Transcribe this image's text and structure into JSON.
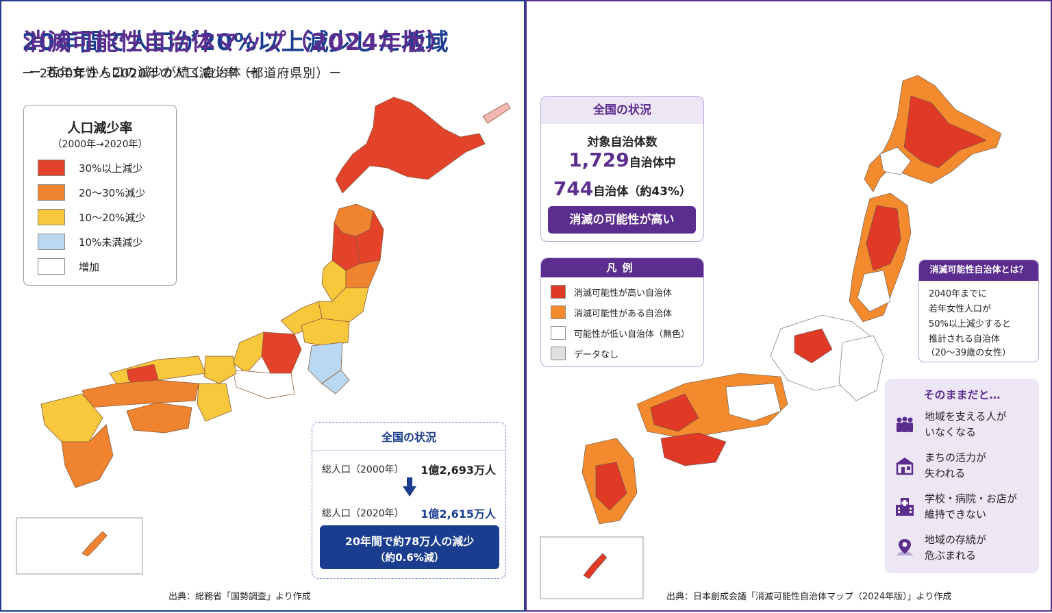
{
  "colors": {
    "left_accent": "#1a3d8f",
    "right_accent": "#5b2d8e",
    "decline_30_plus": "#e2432a",
    "decline_20_30": "#f0832f",
    "decline_10_20": "#f7c73c",
    "decline_under_10": "#b9d8f2",
    "increase": "#ffffff",
    "high_possibility": "#e03a26",
    "possible": "#f38a2e",
    "low_possibility": "#ffffff",
    "no_data": "#e0e0e0"
  },
  "left": {
    "title": "20年間で人口が20%以上減少した地域",
    "subtitle": "ー 2000年から2020年の人口減少率（都道府県別）ー",
    "legend": {
      "title": "人口減少率",
      "subtitle": "（2000年→2020年）",
      "items": [
        {
          "label": "30%以上減少",
          "color": "#e2432a"
        },
        {
          "label": "20～30%減少",
          "color": "#f0832f"
        },
        {
          "label": "10～20%減少",
          "color": "#f7c73c"
        },
        {
          "label": "10%未満減少",
          "color": "#b9d8f2"
        },
        {
          "label": "増加",
          "color": "#ffffff"
        }
      ]
    },
    "stats": {
      "header": "全国の状況",
      "row1_label": "総人口（2000年）",
      "row1_value": "1億2,693万人",
      "row2_label": "総人口（2020年）",
      "row2_value": "1億2,615万人",
      "result_line1": "20年間で約78万人の減少",
      "result_line2": "（約0.6%減）"
    },
    "source": "出典：総務省「国勢調査」より作成"
  },
  "right": {
    "title": "消滅可能性自治体マップ（2024年版）",
    "subtitle": "ー 若年女性人口の減少が続く自治体 ー",
    "national": {
      "header": "全国の状況",
      "label": "対象自治体数",
      "total_num": "1,729",
      "total_suffix": "自治体中",
      "count_num": "744",
      "count_suffix": "自治体（約43%）",
      "button": "消滅の可能性が高い"
    },
    "legend": {
      "title": "凡例",
      "items": [
        {
          "label": "消滅可能性が高い自治体",
          "color": "#e03a26"
        },
        {
          "label": "消滅可能性がある自治体",
          "color": "#f38a2e"
        },
        {
          "label": "可能性が低い自治体（無色）",
          "color": "#ffffff"
        },
        {
          "label": "データなし",
          "color": "#e0e0e0"
        }
      ]
    },
    "definition": {
      "header": "消滅可能性自治体とは？",
      "lines": [
        "2040年までに",
        "若年女性人口が",
        "50%以上減少すると",
        "推計される自治体",
        "（20～39歳の女性）"
      ]
    },
    "consequences": {
      "header": "そのままだと…",
      "items": [
        {
          "icon": "people-icon",
          "line1": "地域を支える人が",
          "line2": "いなくなる"
        },
        {
          "icon": "shop-icon",
          "line1": "まちの活力が",
          "line2": "失われる"
        },
        {
          "icon": "hospital-icon",
          "line1": "学校・病院・お店が",
          "line2": "維持できない"
        },
        {
          "icon": "map-pin-icon",
          "line1": "地域の存続が",
          "line2": "危ぶまれる"
        }
      ]
    },
    "source": "出典：日本創成会議「消滅可能性自治体マップ（2024年版）」より作成"
  }
}
